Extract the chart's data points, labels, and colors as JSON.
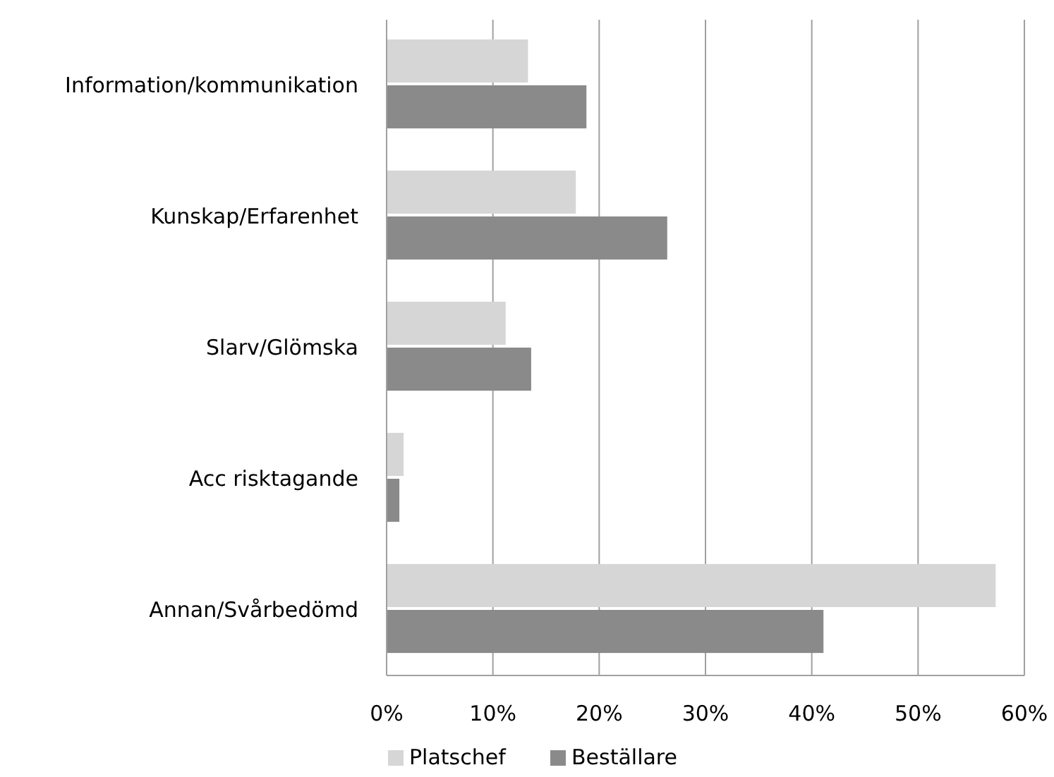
{
  "chart_data": {
    "type": "bar",
    "orientation": "horizontal",
    "categories": [
      "Information/kommunikation",
      "Kunskap/Erfarenhet",
      "Slarv/Glömska",
      "Acc risktagande",
      "Annan/Svårbedömd"
    ],
    "series": [
      {
        "name": "Platschef",
        "color": "#d6d6d6",
        "values": [
          13.3,
          17.8,
          11.2,
          1.6,
          57.3
        ]
      },
      {
        "name": "Beställare",
        "color": "#8a8a8a",
        "values": [
          18.8,
          26.4,
          13.6,
          1.2,
          41.1
        ]
      }
    ],
    "xlim": [
      0,
      60
    ],
    "xticks": [
      {
        "value": 0,
        "label": "0%"
      },
      {
        "value": 10,
        "label": "10%"
      },
      {
        "value": 20,
        "label": "20%"
      },
      {
        "value": 30,
        "label": "30%"
      },
      {
        "value": 40,
        "label": "40%"
      },
      {
        "value": 50,
        "label": "50%"
      },
      {
        "value": 60,
        "label": "60%"
      }
    ],
    "grid": "x",
    "legend": "bottom"
  }
}
